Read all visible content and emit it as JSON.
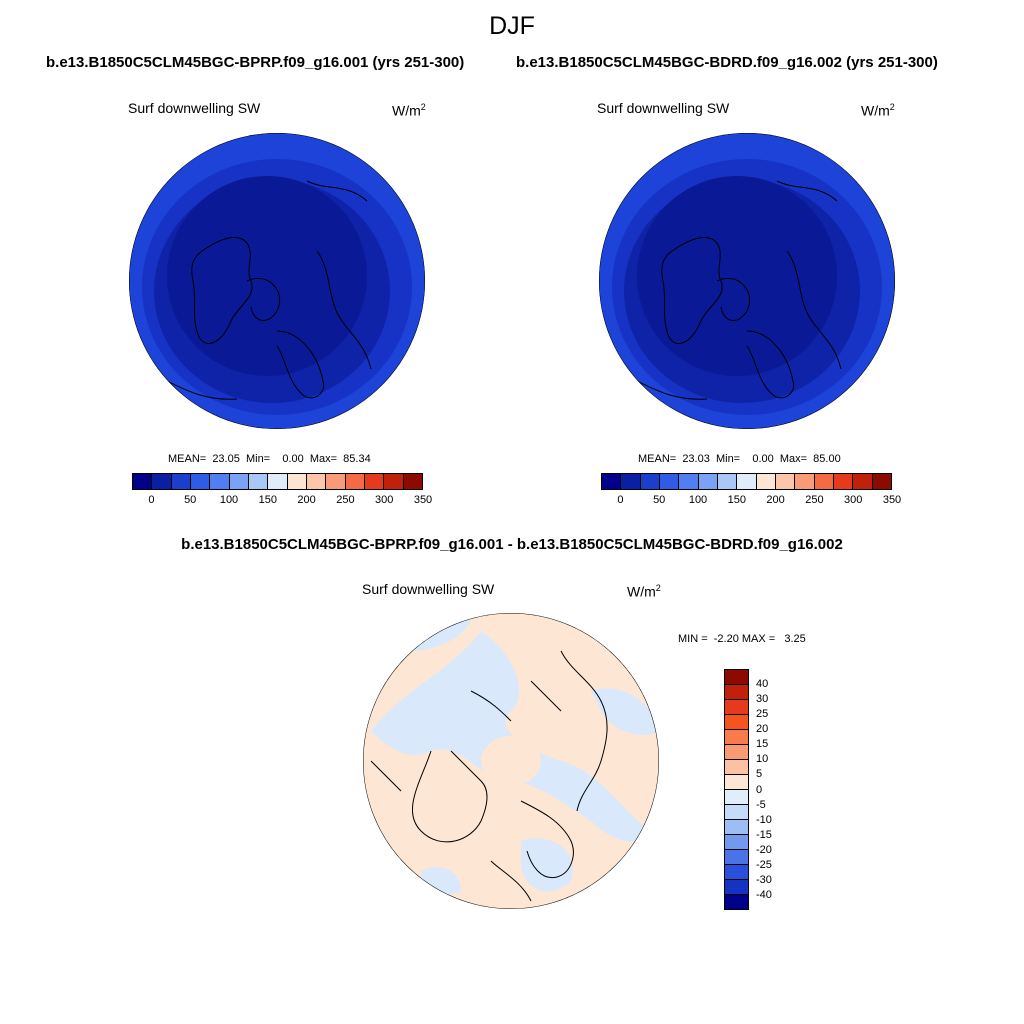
{
  "page": {
    "season": "DJF",
    "case_a_title": "b.e13.B1850C5CLM45BGC-BPRP.f09_g16.001 (yrs 251-300)",
    "case_b_title": "b.e13.B1850C5CLM45BGC-BDRD.f09_g16.002 (yrs 251-300)",
    "diff_title": "b.e13.B1850C5CLM45BGC-BPRP.f09_g16.001 - b.e13.B1850C5CLM45BGC-BDRD.f09_g16.002"
  },
  "panels": [
    {
      "variable": "Surf downwelling SW",
      "units": "W/m",
      "units_exp": "2",
      "stats": "MEAN=  23.05  Min=    0.00  Max=  85.34"
    },
    {
      "variable": "Surf downwelling SW",
      "units": "W/m",
      "units_exp": "2",
      "stats": "MEAN=  23.03  Min=    0.00  Max=  85.00"
    },
    {
      "variable": "Surf downwelling SW",
      "units": "W/m",
      "units_exp": "2",
      "stats": "MIN =  -2.20 MAX =   3.25"
    }
  ],
  "colorbars": {
    "abs_colors": [
      "#00008a",
      "#0a1fa3",
      "#1a3fcc",
      "#2e5ce6",
      "#4f7ff0",
      "#7ba3f5",
      "#a9c8f7",
      "#deecfb",
      "#fde5d3",
      "#fcc6a8",
      "#f99b77",
      "#f46a45",
      "#e63a1c",
      "#c1200b",
      "#8c0a00"
    ],
    "abs_ticks": [
      "0",
      "50",
      "100",
      "150",
      "200",
      "250",
      "300",
      "350"
    ],
    "diff_colors": [
      "#8c0a00",
      "#c1200b",
      "#e63a1c",
      "#f5541c",
      "#f97b4c",
      "#fb9a72",
      "#fcc1a2",
      "#fde6d4",
      "#e0edfb",
      "#c5dbfa",
      "#9dbdf5",
      "#7399ef",
      "#4b73e8",
      "#2a4fdc",
      "#1533c0",
      "#00008a"
    ],
    "diff_ticks": [
      "40",
      "30",
      "25",
      "20",
      "15",
      "10",
      "5",
      "0",
      "-5",
      "-10",
      "-15",
      "-20",
      "-25",
      "-30",
      "-40"
    ]
  },
  "map_colors": {
    "abs_levels": [
      "#1d43d8",
      "#1733c6",
      "#0f23a8",
      "#0a1a96"
    ],
    "diff_pos": "#fde6d4",
    "diff_neg": "#d9e9fb",
    "coast": "#000000"
  }
}
